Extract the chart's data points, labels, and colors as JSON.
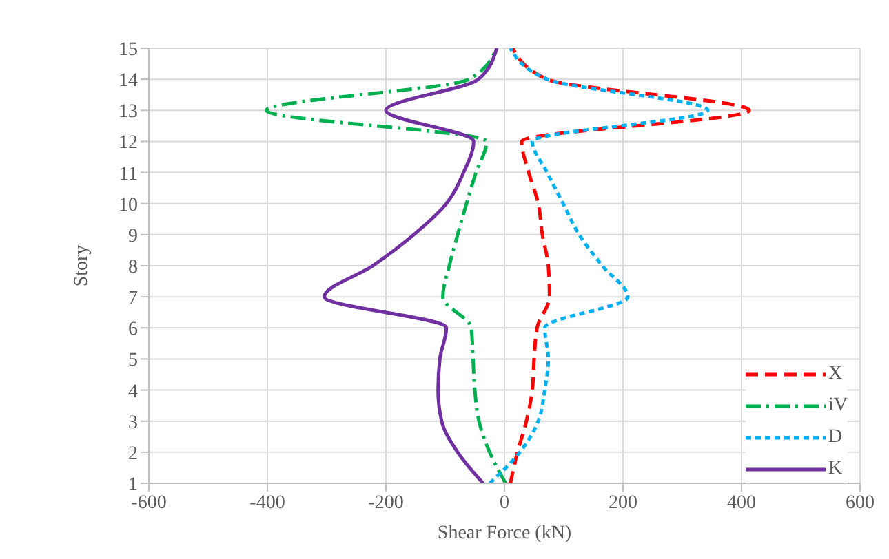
{
  "chart_data": {
    "type": "line",
    "xlabel": "Shear Force (kN)",
    "ylabel": "Story",
    "xlim": [
      -600,
      600
    ],
    "xticks": [
      -600,
      -400,
      -200,
      0,
      200,
      400,
      600
    ],
    "ylim": [
      1,
      15
    ],
    "yticks": [
      1,
      2,
      3,
      4,
      5,
      6,
      7,
      8,
      9,
      10,
      11,
      12,
      13,
      14,
      15
    ],
    "grid": true,
    "legend": "bottom right",
    "marker": "none",
    "series": [
      {
        "name": "X",
        "color": "#ff0000",
        "line_style": "dashed",
        "x": [
          10,
          22,
          37,
          47,
          50,
          55,
          76,
          74,
          64,
          57,
          41,
          29,
          413,
          72,
          14
        ],
        "values": [
          1,
          2,
          3,
          4,
          5,
          6,
          7,
          8,
          9,
          10,
          11,
          12,
          13,
          14,
          15
        ]
      },
      {
        "name": "iV",
        "color": "#00b050",
        "line_style": "dashdot",
        "x": [
          2,
          -25,
          -43,
          -50,
          -53,
          -56,
          -104,
          -93,
          -79,
          -64,
          -48,
          -30,
          -402,
          -60,
          -13
        ],
        "values": [
          1,
          2,
          3,
          4,
          5,
          6,
          7,
          8,
          9,
          10,
          11,
          12,
          13,
          14,
          15
        ]
      },
      {
        "name": "D",
        "color": "#00b0f0",
        "line_style": "dotted",
        "x": [
          -25,
          26,
          57,
          68,
          74,
          68,
          208,
          165,
          126,
          99,
          72,
          47,
          343,
          72,
          10
        ],
        "values": [
          1,
          2,
          3,
          4,
          5,
          6,
          7,
          8,
          9,
          10,
          11,
          12,
          13,
          14,
          15
        ]
      },
      {
        "name": "K",
        "color": "#7030a0",
        "line_style": "solid",
        "x": [
          -36,
          -79,
          -106,
          -112,
          -109,
          -98,
          -304,
          -222,
          -153,
          -98,
          -69,
          -52,
          -200,
          -44,
          -13
        ],
        "values": [
          1,
          2,
          3,
          4,
          5,
          6,
          7,
          8,
          9,
          10,
          11,
          12,
          13,
          14,
          15
        ]
      }
    ]
  }
}
